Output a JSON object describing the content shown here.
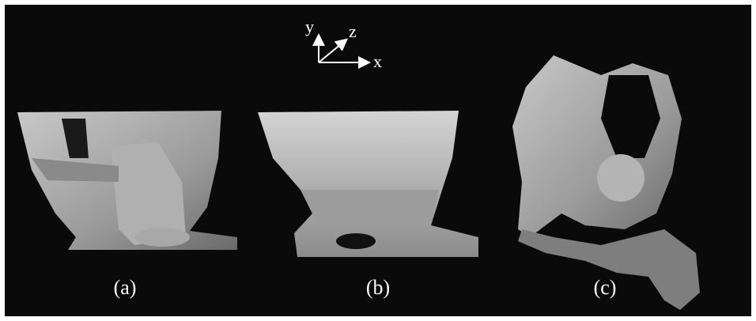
{
  "axes": {
    "labels": [
      "y",
      "z",
      "x"
    ]
  },
  "panels": [
    {
      "label": "(a)"
    },
    {
      "label": "(b)"
    },
    {
      "label": "(c)"
    }
  ]
}
